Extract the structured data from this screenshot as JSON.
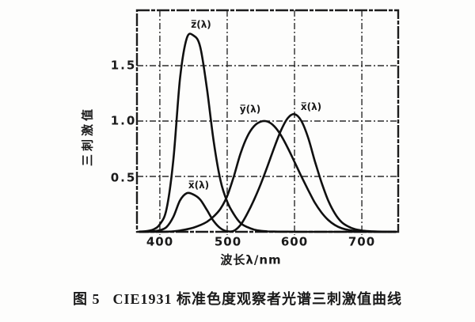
{
  "figure": {
    "caption_label": "图 5",
    "caption_title": "CIE1931 标准色度观察者光谱三刺激值曲线"
  },
  "chart_data": {
    "type": "line",
    "title": "CIE1931 标准色度观察者光谱三刺激值曲线",
    "xlabel": "波长λ/nm",
    "ylabel": "三刺激值",
    "grid": true,
    "legend_position": "none",
    "xlim": [
      366,
      754
    ],
    "ylim": [
      0,
      2.0
    ],
    "x_ticks": [
      400,
      500,
      600,
      700
    ],
    "y_ticks": [
      1.5,
      1.0,
      0.5
    ],
    "x_tick_labels": [
      "400",
      "500",
      "600",
      "700"
    ],
    "y_tick_labels": [
      "1.5",
      "1.0",
      "0.5"
    ],
    "curve_labels": {
      "zbar": "z̅(λ)",
      "ybar": "y̅(λ)",
      "xbar": "x̅(λ)",
      "xbar_short_lobe": "x̅(λ)"
    },
    "x": [
      370,
      380,
      390,
      400,
      410,
      420,
      430,
      440,
      450,
      460,
      470,
      480,
      490,
      500,
      510,
      520,
      530,
      540,
      550,
      560,
      570,
      580,
      590,
      600,
      610,
      620,
      630,
      640,
      650,
      660,
      670,
      680,
      690,
      700,
      710,
      720,
      730,
      740,
      750
    ],
    "series": [
      {
        "name": "x̅(λ)",
        "peak": {
          "wavelength": 600,
          "value": 1.06
        },
        "values": [
          0.0004,
          0.0014,
          0.0042,
          0.0143,
          0.0435,
          0.1344,
          0.2839,
          0.3483,
          0.3362,
          0.2908,
          0.1954,
          0.0956,
          0.032,
          0.0049,
          0.0093,
          0.0633,
          0.1655,
          0.2904,
          0.4334,
          0.5945,
          0.7621,
          0.9163,
          1.0263,
          1.0622,
          1.0026,
          0.8544,
          0.6424,
          0.4479,
          0.2835,
          0.1649,
          0.0874,
          0.0468,
          0.0227,
          0.0114,
          0.0058,
          0.0029,
          0.0014,
          0.0007,
          0.0003
        ]
      },
      {
        "name": "y̅(λ)",
        "peak": {
          "wavelength": 555,
          "value": 1.0
        },
        "values": [
          0.0,
          0.0,
          0.0001,
          0.0004,
          0.0012,
          0.004,
          0.0116,
          0.023,
          0.038,
          0.06,
          0.091,
          0.139,
          0.208,
          0.323,
          0.503,
          0.71,
          0.862,
          0.954,
          0.995,
          0.995,
          0.952,
          0.87,
          0.757,
          0.631,
          0.503,
          0.381,
          0.265,
          0.175,
          0.107,
          0.061,
          0.032,
          0.017,
          0.0082,
          0.0041,
          0.0021,
          0.001,
          0.0005,
          0.0002,
          0.0001
        ]
      },
      {
        "name": "z̅(λ)",
        "peak": {
          "wavelength": 445,
          "value": 1.78
        },
        "values": [
          0.0019,
          0.0065,
          0.0201,
          0.0679,
          0.2074,
          0.6456,
          1.3856,
          1.7471,
          1.7721,
          1.6692,
          1.2876,
          0.813,
          0.4652,
          0.272,
          0.1582,
          0.0782,
          0.0422,
          0.0203,
          0.0087,
          0.0039,
          0.0021,
          0.0017,
          0.0011,
          0.0008,
          0.0003,
          0.0002,
          0.0001,
          0,
          0,
          0,
          0,
          0,
          0,
          0,
          0,
          0,
          0,
          0,
          0
        ]
      }
    ],
    "stroke_color": "#101010"
  }
}
